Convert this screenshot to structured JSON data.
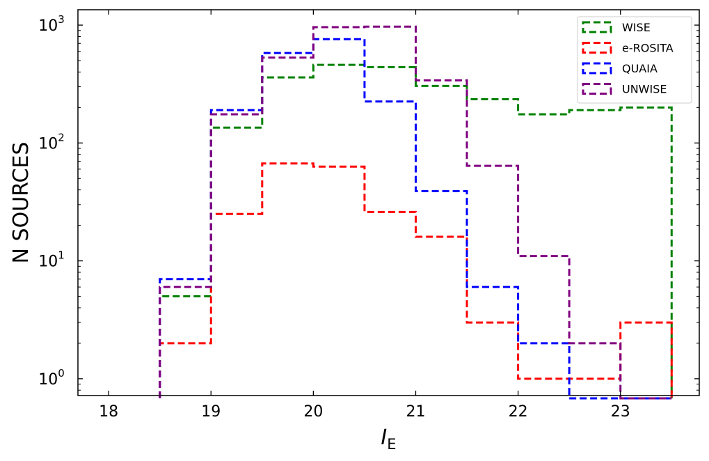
{
  "chart_data": {
    "type": "step-histogram",
    "xlabel": "I",
    "xlabel_subscript": "E",
    "ylabel": "N SOURCES",
    "xlim": [
      17.7,
      23.77
    ],
    "ylim": [
      0.72,
      1350
    ],
    "yscale": "log",
    "grid": false,
    "legend_position": "top-right",
    "x_ticks": [
      {
        "value": 18,
        "label": "18"
      },
      {
        "value": 19,
        "label": "19"
      },
      {
        "value": 20,
        "label": "20"
      },
      {
        "value": 21,
        "label": "21"
      },
      {
        "value": 22,
        "label": "22"
      },
      {
        "value": 23,
        "label": "23"
      }
    ],
    "y_ticks": [
      {
        "value": 1,
        "base": "10",
        "exp": "0"
      },
      {
        "value": 10,
        "base": "10",
        "exp": "1"
      },
      {
        "value": 100,
        "base": "10",
        "exp": "2"
      },
      {
        "value": 1000,
        "base": "10",
        "exp": "3"
      }
    ],
    "bin_edges": [
      18.5,
      19.0,
      19.5,
      20.0,
      20.5,
      21.0,
      21.5,
      22.0,
      22.5,
      23.0,
      23.5
    ],
    "series": [
      {
        "name": "WISE",
        "color": "#008000",
        "counts": [
          5,
          135,
          360,
          460,
          440,
          305,
          235,
          175,
          190,
          200
        ]
      },
      {
        "name": "e-ROSITA",
        "color": "#ff0000",
        "counts": [
          2,
          25,
          67,
          63,
          26,
          16,
          3,
          1,
          1,
          3
        ]
      },
      {
        "name": "QUAIA",
        "color": "#0000ff",
        "counts": [
          7,
          190,
          580,
          760,
          225,
          39,
          6,
          2,
          0,
          0
        ]
      },
      {
        "name": "UNWISE",
        "color": "#800080",
        "counts": [
          6,
          175,
          530,
          960,
          970,
          340,
          64,
          11,
          2,
          0
        ]
      }
    ]
  }
}
